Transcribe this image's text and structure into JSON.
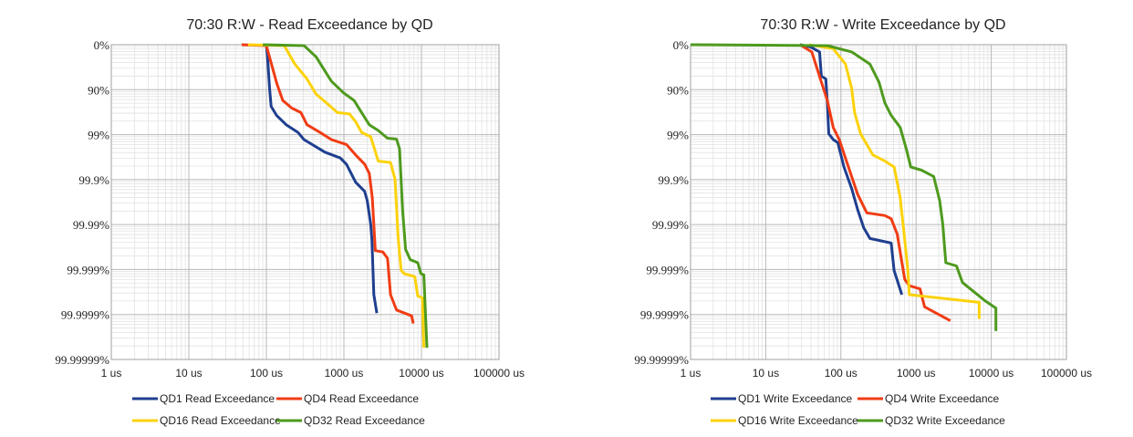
{
  "chart_data": [
    {
      "type": "line",
      "title": "70:30 R:W - Read Exceedance by QD",
      "xscale": "log",
      "xlim": [
        1,
        100000
      ],
      "x_ticks": [
        "1 us",
        "10 us",
        "100 us",
        "1000 us",
        "10000 us",
        "100000 us"
      ],
      "y_ticks": [
        "0%",
        "90%",
        "99%",
        "99.9%",
        "99.99%",
        "99.999%",
        "99.9999%",
        "99.99999%"
      ],
      "y_units": "nines (0 = 0%, 1 = 90%, 2 = 99%, ...)",
      "ylim": [
        0,
        7
      ],
      "grid": true,
      "legend_position": "bottom",
      "series": [
        {
          "name": "QD1 Read Exceedance",
          "color": "#1f3f8f",
          "points": [
            [
              100,
              0
            ],
            [
              105,
              0.43
            ],
            [
              110,
              0.97
            ],
            [
              115,
              1.37
            ],
            [
              135,
              1.57
            ],
            [
              180,
              1.78
            ],
            [
              255,
              1.95
            ],
            [
              305,
              2.11
            ],
            [
              570,
              2.39
            ],
            [
              900,
              2.52
            ],
            [
              1080,
              2.66
            ],
            [
              1420,
              3.06
            ],
            [
              1850,
              3.26
            ],
            [
              2000,
              3.47
            ],
            [
              2220,
              4.0
            ],
            [
              2300,
              4.34
            ],
            [
              2430,
              5.56
            ],
            [
              2660,
              5.97
            ]
          ]
        },
        {
          "name": "QD4 Read Exceedance",
          "color": "#f03c14",
          "points": [
            [
              48,
              0
            ],
            [
              100,
              0.02
            ],
            [
              119,
              0.49
            ],
            [
              136,
              0.86
            ],
            [
              163,
              1.24
            ],
            [
              213,
              1.41
            ],
            [
              279,
              1.51
            ],
            [
              334,
              1.78
            ],
            [
              525,
              1.98
            ],
            [
              688,
              2.11
            ],
            [
              1080,
              2.22
            ],
            [
              1414,
              2.45
            ],
            [
              1853,
              2.66
            ],
            [
              2122,
              2.86
            ],
            [
              2322,
              3.4
            ],
            [
              2430,
              4.0
            ],
            [
              2540,
              4.58
            ],
            [
              3180,
              4.61
            ],
            [
              3650,
              4.75
            ],
            [
              3990,
              5.56
            ],
            [
              4770,
              5.9
            ],
            [
              7470,
              6.03
            ],
            [
              7830,
              6.2
            ]
          ]
        },
        {
          "name": "QD16 Read Exceedance",
          "color": "#fcd20a",
          "points": [
            [
              58,
              0
            ],
            [
              170,
              0.02
            ],
            [
              233,
              0.43
            ],
            [
              334,
              0.76
            ],
            [
              438,
              1.1
            ],
            [
              574,
              1.27
            ],
            [
              824,
              1.51
            ],
            [
              1180,
              1.54
            ],
            [
              1414,
              1.71
            ],
            [
              1693,
              1.95
            ],
            [
              2220,
              2.05
            ],
            [
              2780,
              2.59
            ],
            [
              3990,
              2.62
            ],
            [
              4560,
              2.99
            ],
            [
              5000,
              4.28
            ],
            [
              5470,
              5.02
            ],
            [
              5990,
              5.09
            ],
            [
              8200,
              5.16
            ],
            [
              8980,
              5.59
            ],
            [
              10280,
              5.63
            ],
            [
              10740,
              6.74
            ]
          ]
        },
        {
          "name": "QD32 Read Exceedance",
          "color": "#4e9a1e",
          "points": [
            [
              90,
              0
            ],
            [
              306,
              0.02
            ],
            [
              438,
              0.27
            ],
            [
              688,
              0.81
            ],
            [
              986,
              1.07
            ],
            [
              1352,
              1.24
            ],
            [
              1693,
              1.51
            ],
            [
              2122,
              1.78
            ],
            [
              2780,
              1.91
            ],
            [
              3650,
              2.08
            ],
            [
              4770,
              2.1
            ],
            [
              5220,
              2.32
            ],
            [
              5710,
              3.67
            ],
            [
              6250,
              4.55
            ],
            [
              7160,
              4.78
            ],
            [
              8980,
              4.85
            ],
            [
              9820,
              5.09
            ],
            [
              10740,
              5.12
            ],
            [
              11750,
              6.74
            ]
          ]
        }
      ]
    },
    {
      "type": "line",
      "title": "70:30 R:W - Write Exceedance by QD",
      "xscale": "log",
      "xlim": [
        1,
        100000
      ],
      "x_ticks": [
        "1 us",
        "10 us",
        "100 us",
        "1000 us",
        "10000 us",
        "100000 us"
      ],
      "y_ticks": [
        "0%",
        "90%",
        "99%",
        "99.9%",
        "99.99%",
        "99.999%",
        "99.9999%",
        "99.99999%"
      ],
      "y_units": "nines (0 = 0%, 1 = 90%, 2 = 99%, ...)",
      "ylim": [
        0,
        7
      ],
      "grid": true,
      "legend_position": "bottom",
      "series": [
        {
          "name": "QD1 Write Exceedance",
          "color": "#1f3f8f",
          "points": [
            [
              28.5,
              0
            ],
            [
              39.5,
              0.05
            ],
            [
              52,
              0.16
            ],
            [
              55,
              0.7
            ],
            [
              63,
              0.76
            ],
            [
              66,
              1.3
            ],
            [
              69,
              1.98
            ],
            [
              79,
              2.11
            ],
            [
              91,
              2.18
            ],
            [
              110,
              2.72
            ],
            [
              139,
              3.2
            ],
            [
              167,
              3.67
            ],
            [
              201,
              4.07
            ],
            [
              243,
              4.31
            ],
            [
              466,
              4.41
            ],
            [
              510,
              5.02
            ],
            [
              646,
              5.56
            ]
          ]
        },
        {
          "name": "QD4 Write Exceedance",
          "color": "#f03c14",
          "points": [
            [
              28.5,
              0
            ],
            [
              41,
              0.16
            ],
            [
              55,
              0.83
            ],
            [
              66,
              1.24
            ],
            [
              79,
              1.84
            ],
            [
              95,
              2.11
            ],
            [
              126,
              2.72
            ],
            [
              167,
              3.33
            ],
            [
              221,
              3.74
            ],
            [
              386,
              3.8
            ],
            [
              466,
              3.87
            ],
            [
              561,
              4.21
            ],
            [
              708,
              5.22
            ],
            [
              813,
              5.36
            ],
            [
              1127,
              5.43
            ],
            [
              1295,
              5.83
            ],
            [
              2860,
              6.14
            ]
          ]
        },
        {
          "name": "QD16 Write Exceedance",
          "color": "#fcd20a",
          "points": [
            [
              37.7,
              0
            ],
            [
              79,
              0.09
            ],
            [
              115,
              0.43
            ],
            [
              139,
              0.97
            ],
            [
              152,
              1.51
            ],
            [
              183,
              1.98
            ],
            [
              266,
              2.45
            ],
            [
              386,
              2.59
            ],
            [
              511,
              2.72
            ],
            [
              615,
              3.4
            ],
            [
              708,
              4.34
            ],
            [
              777,
              5.02
            ],
            [
              813,
              5.56
            ],
            [
              6920,
              5.73
            ],
            [
              6920,
              6.1
            ]
          ]
        },
        {
          "name": "QD32 Write Exceedance",
          "color": "#4e9a1e",
          "points": [
            [
              1,
              0
            ],
            [
              66,
              0.02
            ],
            [
              139,
              0.16
            ],
            [
              243,
              0.43
            ],
            [
              321,
              0.83
            ],
            [
              386,
              1.3
            ],
            [
              466,
              1.57
            ],
            [
              615,
              1.84
            ],
            [
              741,
              2.32
            ],
            [
              851,
              2.72
            ],
            [
              1180,
              2.79
            ],
            [
              1714,
              2.93
            ],
            [
              2065,
              3.47
            ],
            [
              2266,
              4.0
            ],
            [
              2485,
              4.85
            ],
            [
              3444,
              4.92
            ],
            [
              4150,
              5.29
            ],
            [
              8340,
              5.7
            ],
            [
              11530,
              5.86
            ],
            [
              11530,
              6.37
            ]
          ]
        }
      ]
    }
  ]
}
